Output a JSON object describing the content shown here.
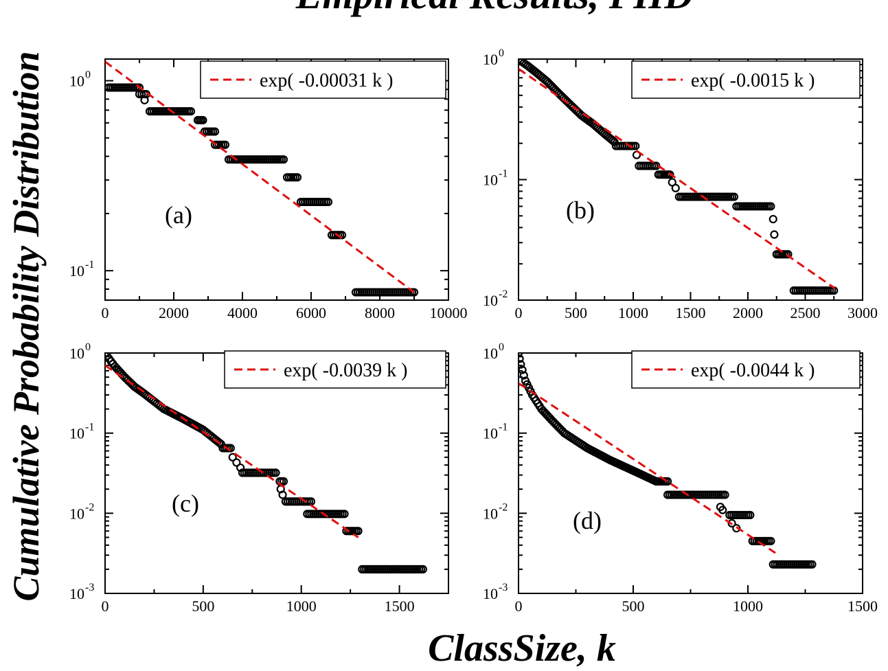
{
  "figure": {
    "title": "Empirical Results, PHD",
    "ylabel": "Cumulative Probability Distribution",
    "xlabel": "ClassSize, k"
  },
  "colors": {
    "data": "#000000",
    "fit": "#e01010",
    "axes": "#000000",
    "background": "#ffffff"
  },
  "chart_data": [
    {
      "type": "scatter",
      "panel_label": "(a)",
      "yscale": "log",
      "xlim": [
        0,
        10000
      ],
      "ylim": [
        0.07,
        1.3
      ],
      "xticks": [
        0,
        2000,
        4000,
        6000,
        8000,
        10000
      ],
      "yticks": [
        {
          "value": 1,
          "base": "10",
          "exp": "0"
        },
        {
          "value": 0.1,
          "base": "10",
          "exp": "-1"
        }
      ],
      "legend": {
        "label": "exp( -0.00031 k )",
        "position": "top-right"
      },
      "fit": {
        "x0": 0,
        "y0": 1.26,
        "x1": 9000,
        "y1": 0.077
      },
      "steps": [
        {
          "x0": 100,
          "x1": 1000,
          "y": 0.92
        },
        {
          "x0": 1000,
          "x1": 1200,
          "y": 0.85
        },
        {
          "x0": 1300,
          "x1": 2500,
          "y": 0.69
        },
        {
          "x0": 2700,
          "x1": 2850,
          "y": 0.62
        },
        {
          "x0": 2900,
          "x1": 3200,
          "y": 0.54
        },
        {
          "x0": 3200,
          "x1": 3500,
          "y": 0.46
        },
        {
          "x0": 3600,
          "x1": 5200,
          "y": 0.385
        },
        {
          "x0": 5300,
          "x1": 5600,
          "y": 0.31
        },
        {
          "x0": 5700,
          "x1": 6500,
          "y": 0.23
        },
        {
          "x0": 6600,
          "x1": 6900,
          "y": 0.154
        },
        {
          "x0": 7300,
          "x1": 9000,
          "y": 0.077
        }
      ],
      "points": [
        {
          "x": 1150,
          "y": 0.79
        }
      ]
    },
    {
      "type": "scatter",
      "panel_label": "(b)",
      "yscale": "log",
      "xlim": [
        0,
        3000
      ],
      "ylim": [
        0.01,
        1.0
      ],
      "xticks": [
        0,
        500,
        1000,
        1500,
        2000,
        2500,
        3000
      ],
      "yticks": [
        {
          "value": 1,
          "base": "10",
          "exp": "0"
        },
        {
          "value": 0.1,
          "base": "10",
          "exp": "-1"
        },
        {
          "value": 0.01,
          "base": "10",
          "exp": "-2"
        }
      ],
      "legend": {
        "label": "exp( -0.0015 k )",
        "position": "top-right"
      },
      "fit": {
        "x0": 0,
        "y0": 0.83,
        "x1": 2760,
        "y1": 0.0125
      },
      "curve": [
        [
          0,
          1.0
        ],
        [
          30,
          0.95
        ],
        [
          80,
          0.88
        ],
        [
          150,
          0.78
        ],
        [
          250,
          0.65
        ],
        [
          350,
          0.52
        ],
        [
          450,
          0.42
        ],
        [
          550,
          0.34
        ],
        [
          650,
          0.29
        ],
        [
          750,
          0.24
        ],
        [
          850,
          0.2
        ]
      ],
      "steps": [
        {
          "x0": 850,
          "x1": 1020,
          "y": 0.19
        },
        {
          "x0": 1050,
          "x1": 1200,
          "y": 0.13
        },
        {
          "x0": 1220,
          "x1": 1320,
          "y": 0.11
        },
        {
          "x0": 1400,
          "x1": 1880,
          "y": 0.072
        },
        {
          "x0": 1900,
          "x1": 2200,
          "y": 0.06
        },
        {
          "x0": 2250,
          "x1": 2350,
          "y": 0.024
        },
        {
          "x0": 2400,
          "x1": 2750,
          "y": 0.012
        }
      ],
      "points": [
        {
          "x": 1030,
          "y": 0.16
        },
        {
          "x": 1340,
          "y": 0.095
        },
        {
          "x": 1370,
          "y": 0.085
        },
        {
          "x": 2220,
          "y": 0.047
        },
        {
          "x": 2230,
          "y": 0.035
        }
      ]
    },
    {
      "type": "scatter",
      "panel_label": "(c)",
      "yscale": "log",
      "xlim": [
        0,
        1750
      ],
      "ylim": [
        0.001,
        1.0
      ],
      "xticks": [
        0,
        500,
        1000,
        1500
      ],
      "yticks": [
        {
          "value": 1,
          "base": "10",
          "exp": "0"
        },
        {
          "value": 0.1,
          "base": "10",
          "exp": "-1"
        },
        {
          "value": 0.01,
          "base": "10",
          "exp": "-2"
        },
        {
          "value": 0.001,
          "base": "10",
          "exp": "-3"
        }
      ],
      "legend": {
        "label": "exp( -0.0039 k )",
        "position": "top-right"
      },
      "fit": {
        "x0": 0,
        "y0": 0.7,
        "x1": 1290,
        "y1": 0.005
      },
      "curve": [
        [
          0,
          1.0
        ],
        [
          20,
          0.85
        ],
        [
          50,
          0.68
        ],
        [
          100,
          0.5
        ],
        [
          150,
          0.38
        ],
        [
          200,
          0.31
        ],
        [
          300,
          0.2
        ],
        [
          400,
          0.15
        ],
        [
          500,
          0.11
        ],
        [
          600,
          0.07
        ]
      ],
      "steps": [
        {
          "x0": 600,
          "x1": 640,
          "y": 0.065
        },
        {
          "x0": 700,
          "x1": 870,
          "y": 0.032
        },
        {
          "x0": 890,
          "x1": 910,
          "y": 0.025
        },
        {
          "x0": 920,
          "x1": 1050,
          "y": 0.014
        },
        {
          "x0": 1030,
          "x1": 1220,
          "y": 0.0098
        },
        {
          "x0": 1230,
          "x1": 1290,
          "y": 0.006
        },
        {
          "x0": 1310,
          "x1": 1620,
          "y": 0.002
        }
      ],
      "points": [
        {
          "x": 650,
          "y": 0.05
        },
        {
          "x": 670,
          "y": 0.043
        },
        {
          "x": 690,
          "y": 0.037
        },
        {
          "x": 895,
          "y": 0.02
        },
        {
          "x": 905,
          "y": 0.017
        }
      ]
    },
    {
      "type": "scatter",
      "panel_label": "(d)",
      "yscale": "log",
      "xlim": [
        0,
        1500
      ],
      "ylim": [
        0.001,
        1.0
      ],
      "xticks": [
        0,
        500,
        1000,
        1500
      ],
      "yticks": [
        {
          "value": 1,
          "base": "10",
          "exp": "0"
        },
        {
          "value": 0.1,
          "base": "10",
          "exp": "-1"
        },
        {
          "value": 0.01,
          "base": "10",
          "exp": "-2"
        },
        {
          "value": 0.001,
          "base": "10",
          "exp": "-3"
        }
      ],
      "legend": {
        "label": "exp( -0.0044 k )",
        "position": "top-right"
      },
      "fit": {
        "x0": 0,
        "y0": 0.42,
        "x1": 1120,
        "y1": 0.0032
      },
      "curve": [
        [
          0,
          1.0
        ],
        [
          10,
          0.72
        ],
        [
          30,
          0.45
        ],
        [
          60,
          0.3
        ],
        [
          100,
          0.2
        ],
        [
          150,
          0.14
        ],
        [
          200,
          0.1
        ],
        [
          300,
          0.065
        ],
        [
          400,
          0.046
        ],
        [
          500,
          0.034
        ],
        [
          600,
          0.025
        ]
      ],
      "steps": [
        {
          "x0": 600,
          "x1": 650,
          "y": 0.025
        },
        {
          "x0": 650,
          "x1": 900,
          "y": 0.017
        },
        {
          "x0": 920,
          "x1": 1010,
          "y": 0.0095
        },
        {
          "x0": 1020,
          "x1": 1100,
          "y": 0.0045
        },
        {
          "x0": 1110,
          "x1": 1280,
          "y": 0.0023
        }
      ],
      "points": [
        {
          "x": 880,
          "y": 0.012
        },
        {
          "x": 890,
          "y": 0.011
        },
        {
          "x": 930,
          "y": 0.0075
        },
        {
          "x": 950,
          "y": 0.0065
        }
      ]
    }
  ]
}
